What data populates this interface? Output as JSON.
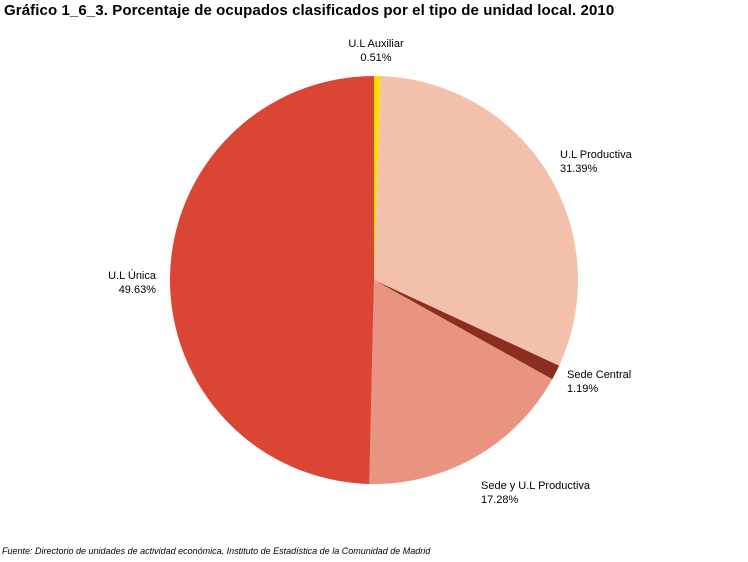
{
  "chart_data": {
    "type": "pie",
    "title": "Gráfico 1_6_3. Porcentaje de ocupados clasificados por el tipo de unidad local. 2010",
    "categories": [
      "U.L Auxiliar",
      "U.L Productiva",
      "Sede Central",
      "Sede y U.L Productiva",
      "U.L Única"
    ],
    "values": [
      0.51,
      31.39,
      1.19,
      17.28,
      49.63
    ],
    "value_labels": [
      "0.51%",
      "31.39%",
      "1.19%",
      "17.28%",
      "49.63%"
    ],
    "colors": [
      "#ffdd00",
      "#f3c0ab",
      "#8b2e20",
      "#e99480",
      "#db4533"
    ],
    "start_angle": "top, clockwise",
    "legend": "none (labels beside slices)"
  },
  "source": "Fuente: Directorio de unidades de actividad económica. Instituto de Estadística de la Comunidad de Madrid"
}
